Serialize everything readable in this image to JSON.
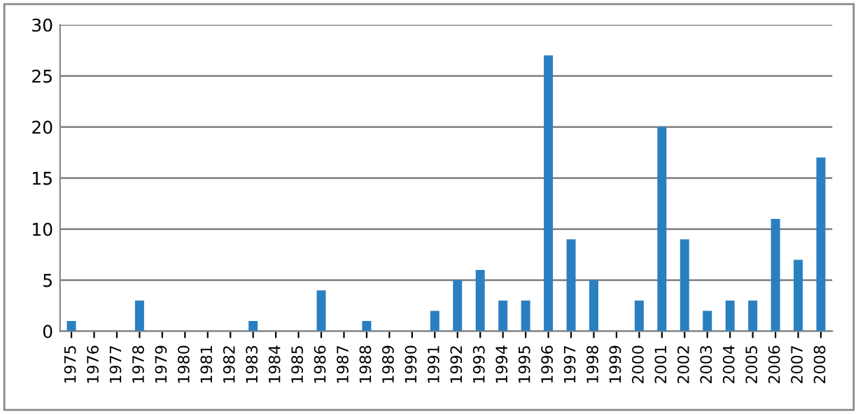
{
  "chart_data": {
    "type": "bar",
    "categories": [
      "1975",
      "1976",
      "1977",
      "1978",
      "1979",
      "1980",
      "1981",
      "1982",
      "1983",
      "1984",
      "1985",
      "1986",
      "1987",
      "1988",
      "1989",
      "1990",
      "1991",
      "1992",
      "1993",
      "1994",
      "1995",
      "1996",
      "1997",
      "1998",
      "1999",
      "2000",
      "2001",
      "2002",
      "2003",
      "2004",
      "2005",
      "2006",
      "2007",
      "2008"
    ],
    "values": [
      1,
      0,
      0,
      3,
      0,
      0,
      0,
      0,
      1,
      0,
      0,
      4,
      0,
      1,
      0,
      0,
      2,
      5,
      6,
      3,
      3,
      27,
      9,
      5,
      0,
      3,
      20,
      9,
      2,
      3,
      3,
      11,
      7,
      17
    ],
    "color": "#2a7fc1",
    "ylim": [
      0,
      30
    ],
    "yticks": [
      0,
      5,
      10,
      15,
      20,
      25,
      30
    ],
    "grid": "y"
  }
}
